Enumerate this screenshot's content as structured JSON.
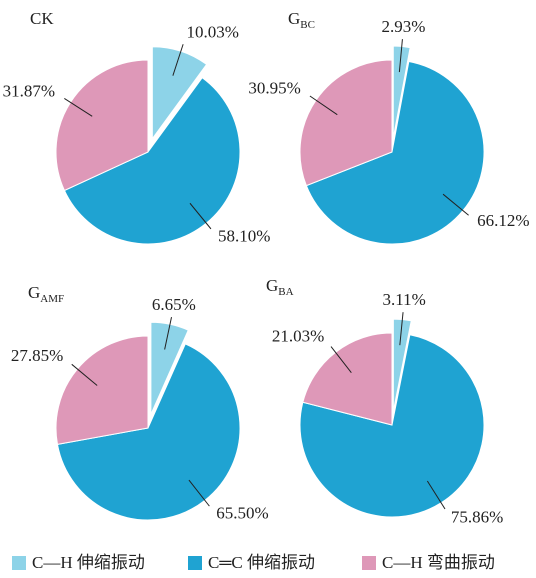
{
  "chart_data": [
    {
      "type": "pie",
      "title": "CK",
      "values": [
        10.03,
        58.1,
        31.87
      ],
      "value_labels": [
        "10.03%",
        "58.10%",
        "31.87%"
      ],
      "exploded": [
        true,
        false,
        false
      ]
    },
    {
      "type": "pie",
      "title": "G",
      "title_subscript": "BC",
      "values": [
        2.93,
        66.12,
        30.95
      ],
      "value_labels": [
        "2.93%",
        "66.12%",
        "30.95%"
      ],
      "exploded": [
        true,
        false,
        false
      ]
    },
    {
      "type": "pie",
      "title": "G",
      "title_subscript": "AMF",
      "values": [
        6.65,
        65.5,
        27.85
      ],
      "value_labels": [
        "6.65%",
        "65.50%",
        "27.85%"
      ],
      "exploded": [
        true,
        false,
        false
      ]
    },
    {
      "type": "pie",
      "title": "G",
      "title_subscript": "BA",
      "values": [
        3.11,
        75.86,
        21.03
      ],
      "value_labels": [
        "3.11%",
        "75.86%",
        "21.03%"
      ],
      "exploded": [
        true,
        false,
        false
      ]
    }
  ],
  "legend": {
    "labels": [
      "C—H 伸缩振动",
      "C═C 伸缩振动",
      "C—H 弯曲振动"
    ],
    "colors": [
      "#8dd3e8",
      "#1fa3d2",
      "#de98b8"
    ]
  }
}
